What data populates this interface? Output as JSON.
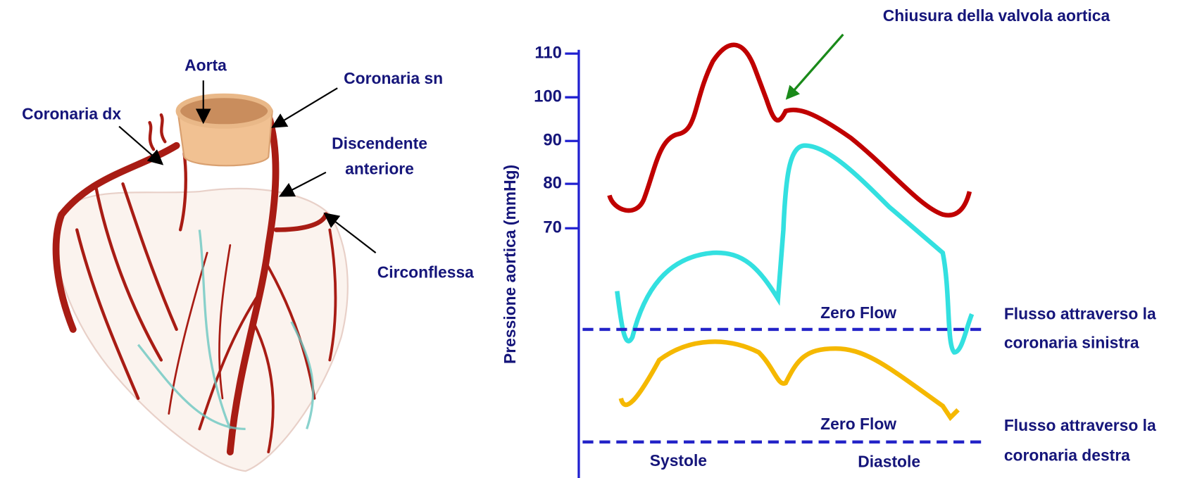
{
  "heart": {
    "aorta": "Aorta",
    "coronaria_sn": "Coronaria sn",
    "coronaria_dx": "Coronaria dx",
    "discendente_anteriore": [
      "Discendente",
      "anteriore"
    ],
    "circonflessa": "Circonflessa"
  },
  "plot": {
    "annotation": "Chiusura della valvola aortica",
    "y_axis_label": "Pressione aortica  (mmHg)",
    "y_ticks": [
      "110",
      "100",
      "90",
      "80",
      "70"
    ],
    "zero_flow": [
      "Zero Flow",
      "Zero Flow"
    ],
    "left_coronary_label": [
      "Flusso attraverso la",
      "coronaria sinistra"
    ],
    "right_coronary_label": [
      "Flusso attraverso la",
      "coronaria destra"
    ],
    "phases": [
      "Systole",
      "Diastole"
    ]
  }
}
